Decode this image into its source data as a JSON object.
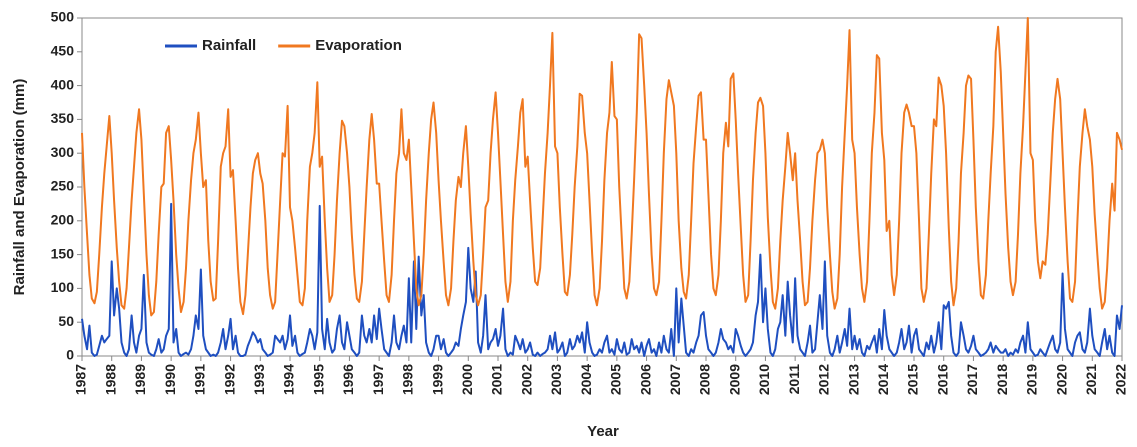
{
  "chart_data": {
    "type": "line",
    "xlabel": "Year",
    "ylabel": "Rainfall and Evaporation (mm)",
    "xlim": [
      1987,
      2022
    ],
    "ylim": [
      0,
      500
    ],
    "xticks": [
      1987,
      1988,
      1989,
      1990,
      1991,
      1992,
      1993,
      1994,
      1995,
      1996,
      1997,
      1998,
      1999,
      2000,
      2001,
      2002,
      2003,
      2004,
      2005,
      2006,
      2007,
      2008,
      2009,
      2010,
      2011,
      2012,
      2013,
      2014,
      2015,
      2016,
      2017,
      2018,
      2019,
      2020,
      2021,
      2022
    ],
    "yticks": [
      0,
      50,
      100,
      150,
      200,
      250,
      300,
      350,
      400,
      450,
      500
    ],
    "grid": false,
    "legend": "upper left",
    "x": [
      1987,
      1987.08,
      1987.17,
      1987.25,
      1987.33,
      1987.42,
      1987.5,
      1987.58,
      1987.67,
      1987.75,
      1987.83,
      1987.92,
      1988,
      1988.08,
      1988.17,
      1988.25,
      1988.33,
      1988.42,
      1988.5,
      1988.58,
      1988.67,
      1988.75,
      1988.83,
      1988.92,
      1989,
      1989.08,
      1989.17,
      1989.25,
      1989.33,
      1989.42,
      1989.5,
      1989.58,
      1989.67,
      1989.75,
      1989.83,
      1989.92,
      1990,
      1990.08,
      1990.17,
      1990.25,
      1990.33,
      1990.42,
      1990.5,
      1990.58,
      1990.67,
      1990.75,
      1990.83,
      1990.92,
      1991,
      1991.08,
      1991.17,
      1991.25,
      1991.33,
      1991.42,
      1991.5,
      1991.58,
      1991.67,
      1991.75,
      1991.83,
      1991.92,
      1992,
      1992.08,
      1992.17,
      1992.25,
      1992.33,
      1992.42,
      1992.5,
      1992.58,
      1992.67,
      1992.75,
      1992.83,
      1992.92,
      1993,
      1993.08,
      1993.17,
      1993.25,
      1993.33,
      1993.42,
      1993.5,
      1993.58,
      1993.67,
      1993.75,
      1993.83,
      1993.92,
      1994,
      1994.08,
      1994.17,
      1994.25,
      1994.33,
      1994.42,
      1994.5,
      1994.58,
      1994.67,
      1994.75,
      1994.83,
      1994.92,
      1995,
      1995.08,
      1995.17,
      1995.25,
      1995.33,
      1995.42,
      1995.5,
      1995.58,
      1995.67,
      1995.75,
      1995.83,
      1995.92,
      1996,
      1996.08,
      1996.17,
      1996.25,
      1996.33,
      1996.42,
      1996.5,
      1996.58,
      1996.67,
      1996.75,
      1996.83,
      1996.92,
      1997,
      1997.08,
      1997.17,
      1997.25,
      1997.33,
      1997.42,
      1997.5,
      1997.58,
      1997.67,
      1997.75,
      1997.83,
      1997.92,
      1998,
      1998.08,
      1998.17,
      1998.25,
      1998.33,
      1998.42,
      1998.5,
      1998.58,
      1998.67,
      1998.75,
      1998.83,
      1998.92,
      1999,
      1999.08,
      1999.17,
      1999.25,
      1999.33,
      1999.42,
      1999.5,
      1999.58,
      1999.67,
      1999.75,
      1999.83,
      1999.92,
      2000,
      2000.08,
      2000.17,
      2000.25,
      2000.33,
      2000.42,
      2000.5,
      2000.58,
      2000.67,
      2000.75,
      2000.83,
      2000.92,
      2001,
      2001.08,
      2001.17,
      2001.25,
      2001.33,
      2001.42,
      2001.5,
      2001.58,
      2001.67,
      2001.75,
      2001.83,
      2001.92,
      2002,
      2002.08,
      2002.17,
      2002.25,
      2002.33,
      2002.42,
      2002.5,
      2002.58,
      2002.67,
      2002.75,
      2002.83,
      2002.92,
      2003,
      2003.08,
      2003.17,
      2003.25,
      2003.33,
      2003.42,
      2003.5,
      2003.58,
      2003.67,
      2003.75,
      2003.83,
      2003.92,
      2004,
      2004.08,
      2004.17,
      2004.25,
      2004.33,
      2004.42,
      2004.5,
      2004.58,
      2004.67,
      2004.75,
      2004.83,
      2004.92,
      2005,
      2005.08,
      2005.17,
      2005.25,
      2005.33,
      2005.42,
      2005.5,
      2005.58,
      2005.67,
      2005.75,
      2005.83,
      2005.92,
      2006,
      2006.08,
      2006.17,
      2006.25,
      2006.33,
      2006.42,
      2006.5,
      2006.58,
      2006.67,
      2006.75,
      2006.83,
      2006.92,
      2007,
      2007.08,
      2007.17,
      2007.25,
      2007.33,
      2007.42,
      2007.5,
      2007.58,
      2007.67,
      2007.75,
      2007.83,
      2007.92,
      2008,
      2008.08,
      2008.17,
      2008.25,
      2008.33,
      2008.42,
      2008.5,
      2008.58,
      2008.67,
      2008.75,
      2008.83,
      2008.92,
      2009,
      2009.08,
      2009.17,
      2009.25,
      2009.33,
      2009.42,
      2009.5,
      2009.58,
      2009.67,
      2009.75,
      2009.83,
      2009.92,
      2010,
      2010.08,
      2010.17,
      2010.25,
      2010.33,
      2010.42,
      2010.5,
      2010.58,
      2010.67,
      2010.75,
      2010.83,
      2010.92,
      2011,
      2011.08,
      2011.17,
      2011.25,
      2011.33,
      2011.42,
      2011.5,
      2011.58,
      2011.67,
      2011.75,
      2011.83,
      2011.92,
      2012,
      2012.08,
      2012.17,
      2012.25,
      2012.33,
      2012.42,
      2012.5,
      2012.58,
      2012.67,
      2012.75,
      2012.83,
      2012.92,
      2013,
      2013.08,
      2013.17,
      2013.25,
      2013.33,
      2013.42,
      2013.5,
      2013.58,
      2013.67,
      2013.75,
      2013.83,
      2013.92,
      2014,
      2014.08,
      2014.17,
      2014.25,
      2014.33,
      2014.42,
      2014.5,
      2014.58,
      2014.67,
      2014.75,
      2014.83,
      2014.92,
      2015,
      2015.08,
      2015.17,
      2015.25,
      2015.33,
      2015.42,
      2015.5,
      2015.58,
      2015.67,
      2015.75,
      2015.83,
      2015.92,
      2016,
      2016.08,
      2016.17,
      2016.25,
      2016.33,
      2016.42,
      2016.5,
      2016.58,
      2016.67,
      2016.75,
      2016.83,
      2016.92,
      2017,
      2017.08,
      2017.17,
      2017.25,
      2017.33,
      2017.42,
      2017.5,
      2017.58,
      2017.67,
      2017.75,
      2017.83,
      2017.92,
      2018,
      2018.08,
      2018.17,
      2018.25,
      2018.33,
      2018.42,
      2018.5,
      2018.58,
      2018.67,
      2018.75,
      2018.83,
      2018.92,
      2019,
      2019.08,
      2019.17,
      2019.25,
      2019.33,
      2019.42,
      2019.5,
      2019.58,
      2019.67,
      2019.75,
      2019.83,
      2019.92,
      2020,
      2020.08,
      2020.17,
      2020.25,
      2020.33,
      2020.42,
      2020.5,
      2020.58,
      2020.67,
      2020.75,
      2020.83,
      2020.92,
      2021,
      2021.08,
      2021.17,
      2021.25,
      2021.33,
      2021.42,
      2021.5,
      2021.58,
      2021.67,
      2021.75,
      2021.83,
      2021.92,
      2022
    ],
    "series": [
      {
        "name": "Rainfall",
        "color": "#1f4fc0",
        "values": [
          55,
          30,
          10,
          45,
          5,
          0,
          2,
          15,
          30,
          20,
          25,
          30,
          140,
          60,
          100,
          70,
          20,
          5,
          0,
          10,
          60,
          20,
          5,
          30,
          40,
          120,
          20,
          5,
          2,
          0,
          10,
          25,
          5,
          10,
          30,
          40,
          225,
          20,
          40,
          5,
          0,
          3,
          5,
          2,
          10,
          30,
          60,
          40,
          128,
          30,
          10,
          5,
          0,
          2,
          0,
          5,
          20,
          40,
          10,
          30,
          55,
          10,
          30,
          5,
          0,
          0,
          2,
          15,
          25,
          35,
          30,
          20,
          25,
          10,
          5,
          0,
          2,
          5,
          30,
          25,
          20,
          30,
          10,
          25,
          60,
          15,
          30,
          5,
          0,
          3,
          5,
          20,
          40,
          30,
          10,
          35,
          222,
          40,
          10,
          55,
          20,
          5,
          10,
          40,
          60,
          20,
          10,
          50,
          30,
          10,
          5,
          0,
          5,
          60,
          30,
          20,
          40,
          20,
          60,
          25,
          70,
          40,
          10,
          5,
          0,
          20,
          60,
          20,
          10,
          30,
          45,
          20,
          115,
          20,
          140,
          40,
          147,
          60,
          90,
          20,
          5,
          0,
          10,
          30,
          30,
          10,
          25,
          5,
          0,
          5,
          10,
          20,
          15,
          40,
          60,
          80,
          160,
          100,
          80,
          125,
          20,
          5,
          30,
          90,
          10,
          20,
          25,
          40,
          15,
          30,
          70,
          10,
          0,
          5,
          2,
          30,
          20,
          10,
          25,
          5,
          10,
          20,
          2,
          0,
          5,
          0,
          3,
          5,
          10,
          30,
          10,
          35,
          5,
          10,
          20,
          0,
          5,
          25,
          10,
          15,
          30,
          20,
          35,
          5,
          50,
          20,
          5,
          0,
          2,
          10,
          5,
          20,
          30,
          5,
          10,
          2,
          25,
          10,
          5,
          20,
          2,
          5,
          25,
          10,
          15,
          5,
          20,
          0,
          15,
          25,
          5,
          10,
          0,
          20,
          5,
          30,
          10,
          5,
          40,
          0,
          100,
          20,
          85,
          45,
          5,
          0,
          10,
          5,
          20,
          30,
          60,
          65,
          30,
          10,
          5,
          0,
          5,
          20,
          40,
          25,
          20,
          10,
          15,
          5,
          40,
          30,
          15,
          5,
          0,
          5,
          10,
          20,
          60,
          80,
          150,
          50,
          100,
          40,
          5,
          0,
          10,
          40,
          50,
          90,
          30,
          110,
          60,
          20,
          115,
          30,
          10,
          5,
          0,
          20,
          45,
          5,
          10,
          50,
          90,
          40,
          140,
          30,
          5,
          0,
          10,
          30,
          5,
          20,
          40,
          15,
          70,
          10,
          30,
          10,
          25,
          5,
          0,
          15,
          10,
          20,
          30,
          5,
          40,
          10,
          68,
          30,
          10,
          5,
          0,
          5,
          20,
          40,
          10,
          20,
          45,
          5,
          30,
          40,
          10,
          5,
          0,
          20,
          10,
          30,
          5,
          20,
          50,
          10,
          75,
          70,
          80,
          30,
          5,
          0,
          5,
          50,
          30,
          10,
          5,
          15,
          30,
          10,
          5,
          0,
          2,
          5,
          10,
          20,
          5,
          15,
          10,
          5,
          5,
          10,
          0,
          5,
          2,
          10,
          5,
          20,
          30,
          5,
          50,
          10,
          5,
          0,
          2,
          10,
          5,
          0,
          10,
          20,
          30,
          10,
          5,
          20,
          122,
          40,
          10,
          5,
          0,
          20,
          30,
          35,
          10,
          5,
          20,
          70,
          30,
          10,
          5,
          0,
          20,
          40,
          10,
          30,
          5,
          0,
          60,
          40,
          75
        ]
      },
      {
        "name": "Evaporation",
        "color": "#f07820",
        "values": [
          330,
          250,
          180,
          120,
          85,
          78,
          95,
          150,
          220,
          270,
          310,
          355,
          300,
          230,
          160,
          110,
          75,
          70,
          100,
          160,
          230,
          280,
          330,
          365,
          320,
          240,
          150,
          90,
          60,
          65,
          110,
          180,
          250,
          255,
          330,
          340,
          290,
          230,
          150,
          100,
          65,
          80,
          130,
          200,
          260,
          300,
          320,
          360,
          300,
          250,
          260,
          170,
          110,
          82,
          85,
          170,
          280,
          300,
          310,
          365,
          265,
          275,
          200,
          130,
          80,
          62,
          90,
          150,
          220,
          270,
          290,
          300,
          270,
          255,
          200,
          130,
          90,
          70,
          80,
          150,
          230,
          300,
          295,
          370,
          220,
          200,
          160,
          120,
          80,
          75,
          100,
          200,
          280,
          300,
          330,
          405,
          280,
          295,
          200,
          130,
          80,
          90,
          150,
          230,
          300,
          348,
          340,
          300,
          250,
          180,
          120,
          85,
          80,
          110,
          180,
          250,
          320,
          358,
          320,
          255,
          255,
          200,
          140,
          90,
          80,
          120,
          200,
          270,
          300,
          365,
          300,
          290,
          320,
          250,
          170,
          100,
          75,
          90,
          150,
          230,
          300,
          350,
          375,
          330,
          260,
          200,
          140,
          90,
          75,
          100,
          170,
          230,
          265,
          250,
          300,
          340,
          280,
          210,
          140,
          90,
          75,
          90,
          150,
          220,
          230,
          300,
          350,
          390,
          330,
          260,
          180,
          110,
          80,
          110,
          200,
          260,
          310,
          360,
          380,
          280,
          295,
          230,
          160,
          110,
          105,
          130,
          200,
          270,
          330,
          400,
          478,
          310,
          300,
          220,
          150,
          95,
          90,
          120,
          180,
          250,
          310,
          388,
          385,
          330,
          300,
          230,
          150,
          90,
          75,
          100,
          170,
          260,
          330,
          360,
          435,
          355,
          350,
          250,
          170,
          100,
          85,
          110,
          180,
          260,
          360,
          476,
          470,
          400,
          330,
          240,
          150,
          100,
          90,
          110,
          200,
          300,
          380,
          408,
          390,
          370,
          300,
          200,
          130,
          95,
          85,
          120,
          200,
          285,
          340,
          385,
          390,
          320,
          320,
          240,
          150,
          100,
          90,
          120,
          200,
          300,
          345,
          310,
          410,
          418,
          350,
          270,
          190,
          120,
          80,
          90,
          170,
          260,
          330,
          375,
          382,
          370,
          300,
          205,
          130,
          80,
          70,
          100,
          170,
          230,
          280,
          330,
          300,
          260,
          300,
          230,
          170,
          110,
          75,
          80,
          130,
          200,
          260,
          300,
          305,
          320,
          300,
          220,
          150,
          95,
          70,
          85,
          150,
          250,
          330,
          400,
          482,
          320,
          300,
          220,
          150,
          100,
          80,
          110,
          200,
          300,
          360,
          445,
          440,
          330,
          290,
          185,
          200,
          120,
          90,
          120,
          200,
          300,
          360,
          372,
          360,
          340,
          340,
          300,
          200,
          100,
          80,
          100,
          180,
          270,
          350,
          340,
          412,
          400,
          370,
          300,
          190,
          110,
          75,
          100,
          170,
          270,
          330,
          400,
          415,
          410,
          320,
          220,
          140,
          90,
          85,
          120,
          200,
          270,
          340,
          450,
          487,
          420,
          330,
          240,
          160,
          110,
          90,
          110,
          180,
          270,
          340,
          420,
          500,
          300,
          290,
          200,
          140,
          115,
          140,
          135,
          180,
          250,
          330,
          380,
          410,
          380,
          300,
          220,
          140,
          85,
          80,
          110,
          200,
          280,
          330,
          365,
          340,
          320,
          280,
          210,
          150,
          100,
          70,
          80,
          130,
          200,
          255,
          215,
          330,
          320,
          305
        ]
      }
    ]
  }
}
